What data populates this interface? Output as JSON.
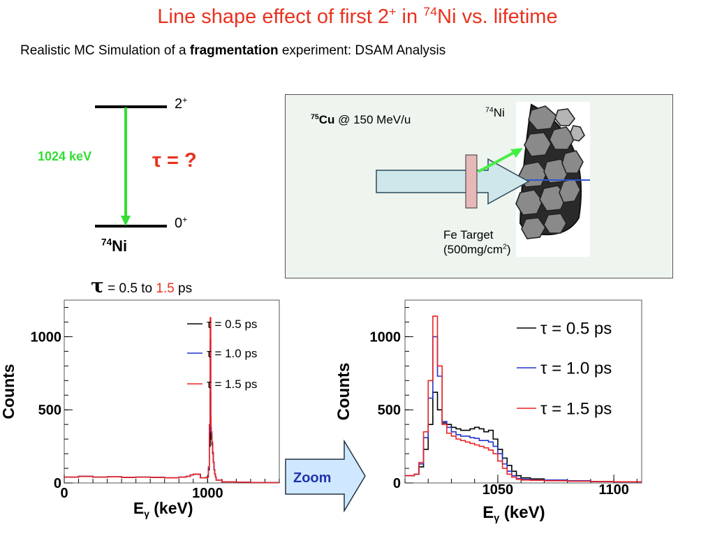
{
  "page": {
    "title_pre": "Line shape effect of first 2",
    "title_sup1": "+",
    "title_mid": " in ",
    "title_sup2": "74",
    "title_post": "Ni vs. lifetime",
    "subtitle_pre": "Realistic MC Simulation of a ",
    "subtitle_bold": "fragmentation",
    "subtitle_post": " experiment: DSAM Analysis"
  },
  "level_scheme": {
    "upper_state": "2",
    "upper_parity": "+",
    "lower_state": "0",
    "lower_parity": "+",
    "transition_energy": "1024 keV",
    "lifetime_question": "τ = ?",
    "nucleus_mass": "74",
    "nucleus_symbol": "Ni",
    "colors": {
      "transition": "#33dd33",
      "question": "#e8321e"
    }
  },
  "experiment": {
    "beam_mass": "75",
    "beam_symbol": "Cu",
    "beam_energy": " @ 150 MeV/u",
    "product_mass": "74",
    "product_symbol": "Ni",
    "target_line1": "Fe Target",
    "target_line2_pre": "(500mg/cm",
    "target_line2_sup": "2",
    "target_line2_post": ")",
    "colors": {
      "background": "#eef4ee",
      "beam_arrow": "#cfe6ea",
      "target": "#e6b8b8",
      "gamma": "#44ee44"
    }
  },
  "tau_range": {
    "symbol": "τ",
    "text_pre": " = 0.5 to ",
    "text_hi": "1.5",
    "text_post": " ps",
    "hi_color": "#e8321e"
  },
  "zoom_label": "Zoom",
  "chart_data": [
    {
      "type": "line",
      "xlabel_base": "E",
      "xlabel_sub": "γ",
      "xlabel_unit": " (keV)",
      "ylabel": "Counts",
      "xlim": [
        0,
        1500
      ],
      "ylim": [
        0,
        1250
      ],
      "xticks": [
        0,
        1000
      ],
      "yticks": [
        0,
        500,
        1000
      ],
      "legend_position": "top-right",
      "x": [
        0,
        100,
        200,
        300,
        400,
        500,
        600,
        700,
        800,
        850,
        880,
        900,
        950,
        990,
        1005,
        1012,
        1018,
        1022,
        1024,
        1026,
        1030,
        1035,
        1040,
        1045,
        1050,
        1055,
        1060,
        1100,
        1200,
        1300,
        1400,
        1500
      ],
      "series": [
        {
          "name": "τ = 0.5 ps",
          "color": "#000000",
          "values": [
            40,
            45,
            40,
            42,
            38,
            40,
            38,
            35,
            40,
            45,
            55,
            60,
            35,
            40,
            90,
            250,
            620,
            380,
            300,
            300,
            260,
            200,
            140,
            90,
            60,
            40,
            20,
            8,
            5,
            3,
            2,
            2
          ]
        },
        {
          "name": "τ = 1.0 ps",
          "color": "#2233cc",
          "values": [
            40,
            45,
            40,
            42,
            38,
            40,
            38,
            35,
            40,
            45,
            55,
            60,
            35,
            40,
            100,
            350,
            980,
            420,
            350,
            330,
            270,
            200,
            140,
            90,
            60,
            40,
            20,
            8,
            5,
            3,
            2,
            2
          ]
        },
        {
          "name": "τ = 1.5 ps",
          "color": "#ee2222",
          "values": [
            40,
            45,
            40,
            42,
            38,
            40,
            38,
            35,
            40,
            45,
            55,
            60,
            35,
            40,
            110,
            400,
            1130,
            450,
            380,
            350,
            280,
            210,
            140,
            90,
            60,
            40,
            20,
            8,
            5,
            3,
            2,
            2
          ]
        }
      ]
    },
    {
      "type": "line",
      "xlabel_base": "E",
      "xlabel_sub": "γ",
      "xlabel_unit": " (keV)",
      "ylabel": "Counts",
      "xlim": [
        1010,
        1112
      ],
      "ylim": [
        0,
        1250
      ],
      "xticks": [
        1050,
        1100
      ],
      "yticks": [
        0,
        500,
        1000
      ],
      "legend_position": "top-right",
      "x": [
        1010,
        1014,
        1016,
        1018,
        1020,
        1022,
        1024,
        1026,
        1028,
        1030,
        1032,
        1034,
        1036,
        1038,
        1040,
        1042,
        1044,
        1046,
        1048,
        1050,
        1052,
        1054,
        1056,
        1058,
        1060,
        1064,
        1070,
        1080,
        1090,
        1100,
        1112
      ],
      "series": [
        {
          "name": "τ = 0.5 ps",
          "color": "#000000",
          "values": [
            50,
            60,
            110,
            230,
            400,
            620,
            500,
            410,
            400,
            380,
            370,
            360,
            360,
            370,
            380,
            370,
            350,
            360,
            300,
            230,
            170,
            120,
            80,
            50,
            35,
            28,
            20,
            15,
            10,
            8,
            8
          ]
        },
        {
          "name": "τ = 1.0 ps",
          "color": "#2233cc",
          "values": [
            50,
            60,
            130,
            310,
            580,
            1000,
            730,
            420,
            380,
            350,
            330,
            320,
            320,
            310,
            305,
            290,
            290,
            280,
            250,
            200,
            130,
            80,
            50,
            30,
            25,
            20,
            20,
            15,
            10,
            8,
            8
          ]
        },
        {
          "name": "τ = 1.5 ps",
          "color": "#ee2222",
          "values": [
            50,
            60,
            140,
            350,
            700,
            1140,
            800,
            400,
            340,
            320,
            300,
            290,
            280,
            270,
            260,
            250,
            240,
            225,
            200,
            150,
            100,
            60,
            40,
            25,
            20,
            18,
            15,
            12,
            10,
            8,
            8
          ]
        }
      ]
    }
  ]
}
